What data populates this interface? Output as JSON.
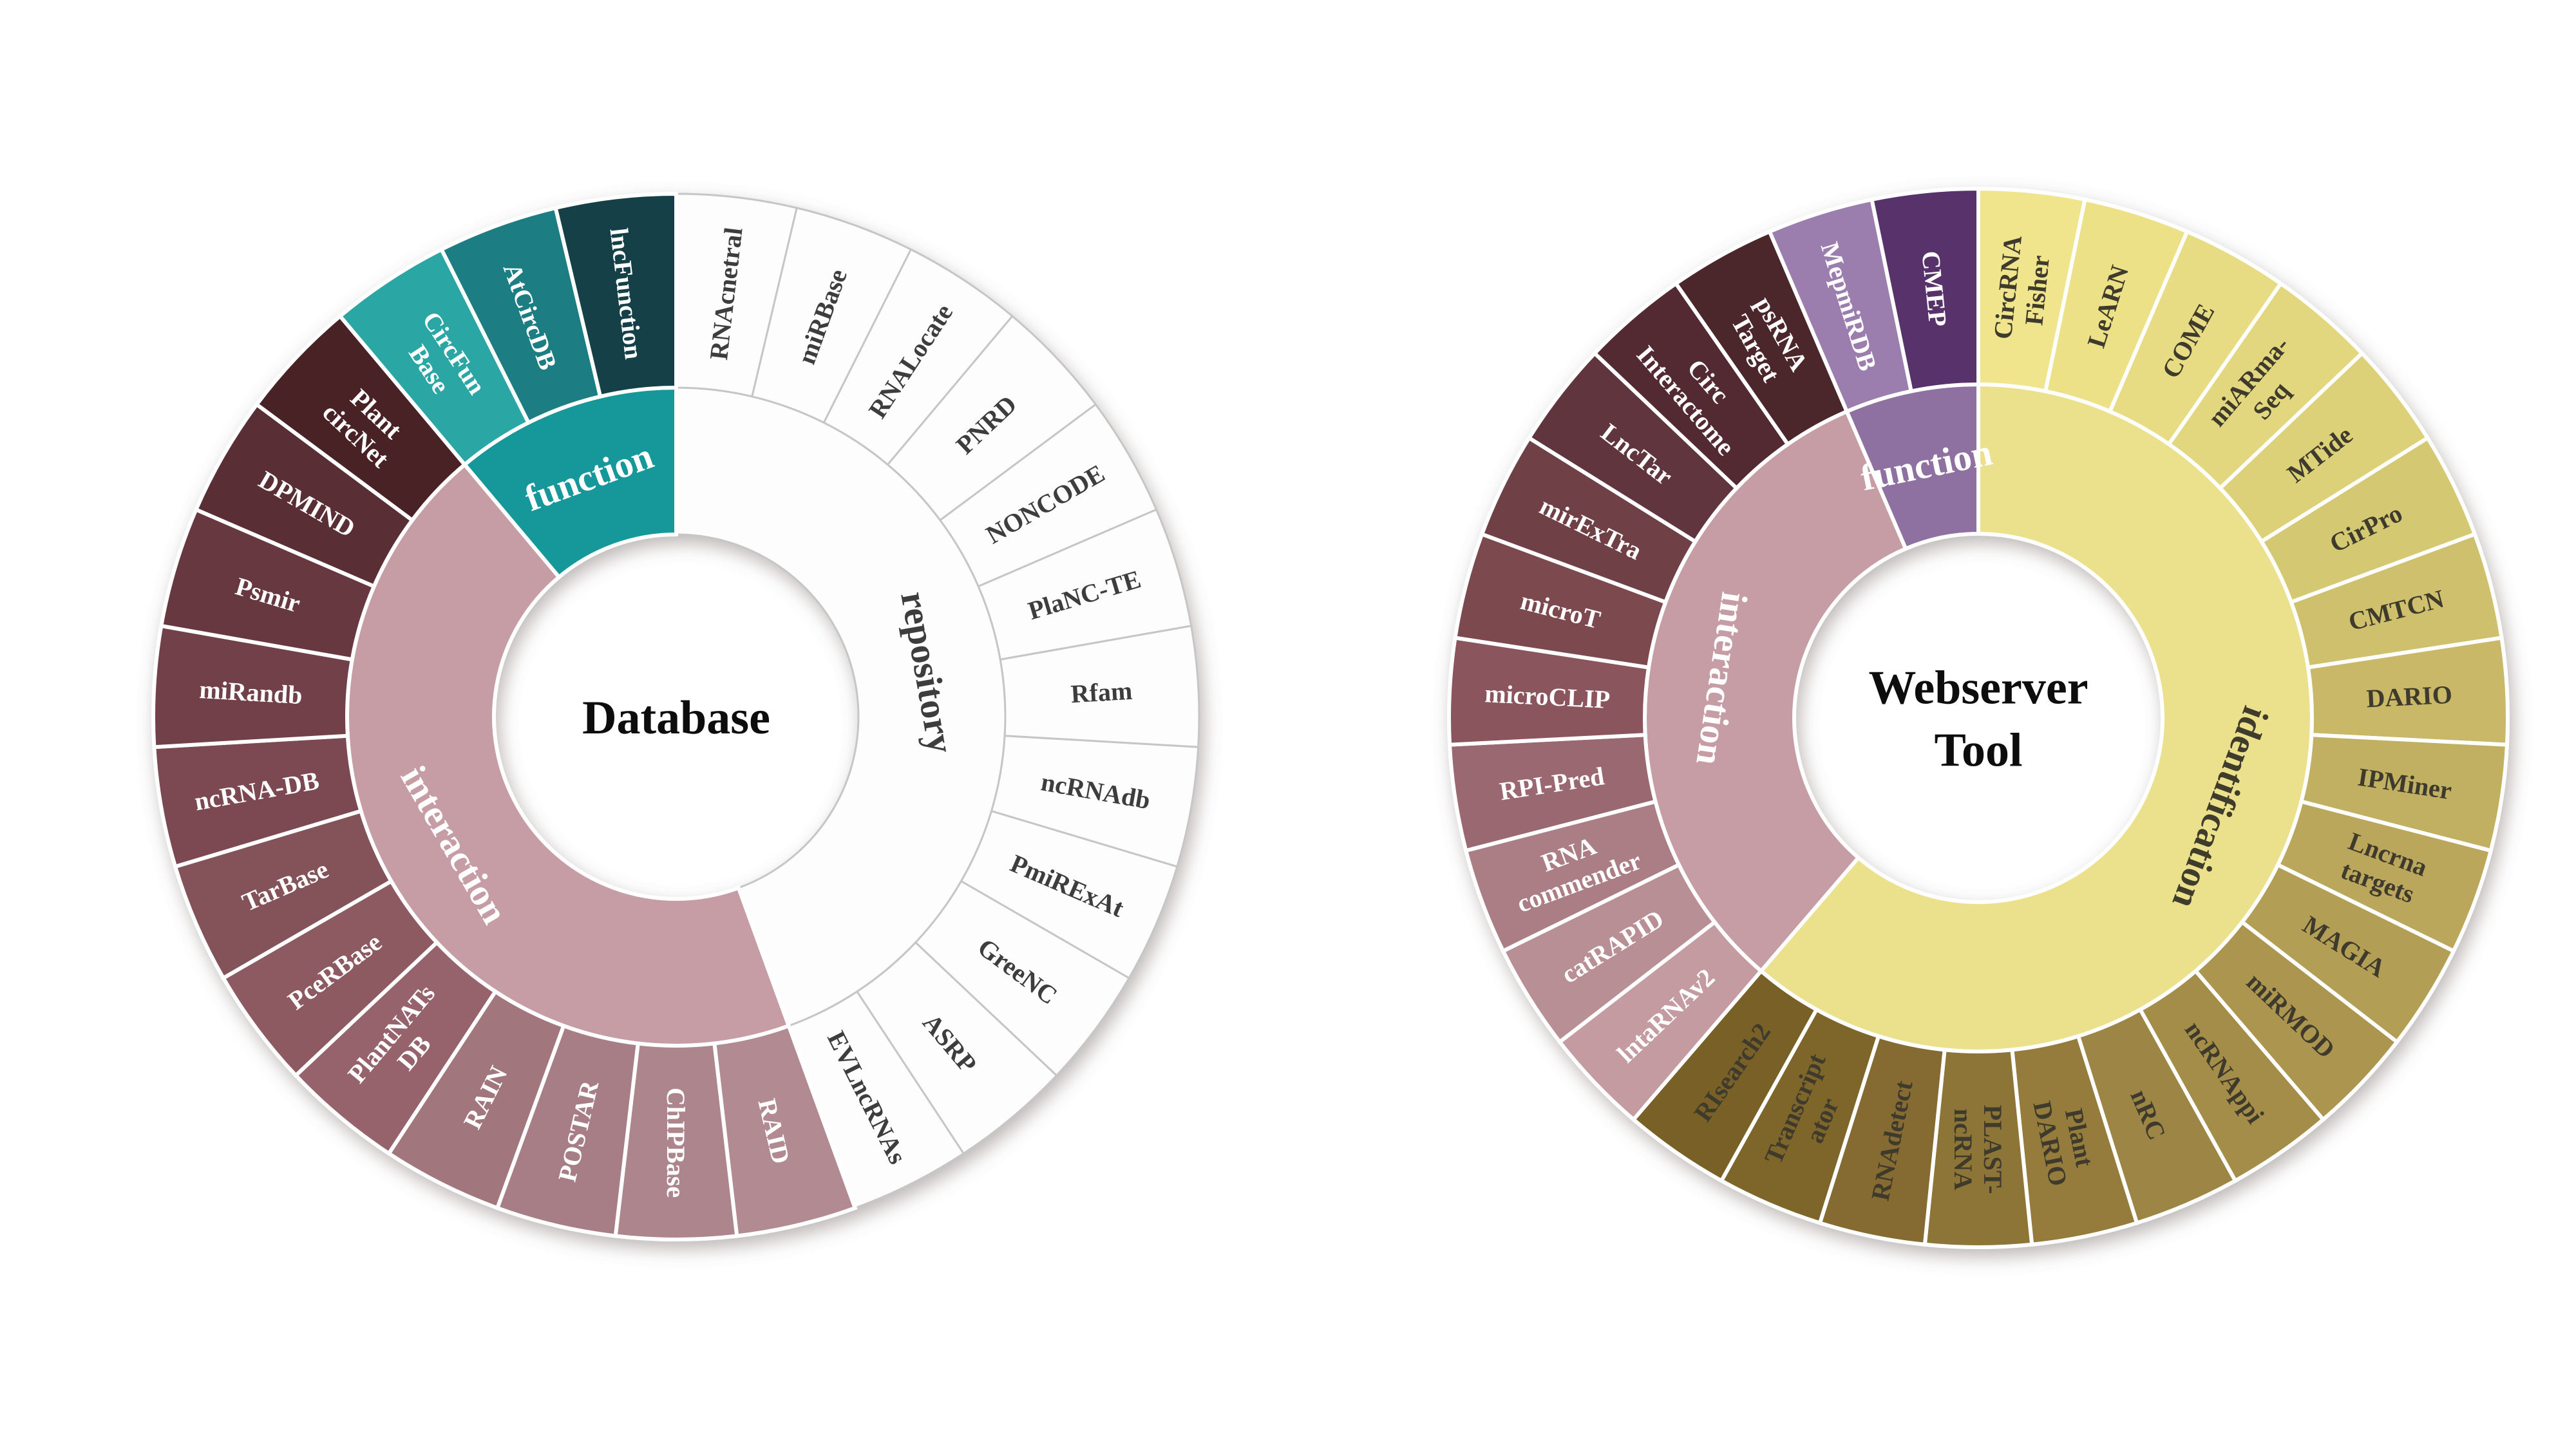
{
  "figure": {
    "description": "Two sunburst (doughnut) charts of plant non-coding RNA bioinformatics resources",
    "background_color": "#ffffff"
  },
  "chart_data": [
    {
      "type": "sunburst",
      "title": "Database",
      "center_label": {
        "lines": [
          "Database"
        ],
        "color": "#0d0d0d"
      },
      "rings": [
        "category",
        "database"
      ],
      "legend_position": "none",
      "grid": false,
      "categories": [
        {
          "name": "repository",
          "color": "#fdfdfd",
          "border_color": "#c6c6c6",
          "label_color": "#3d3d3d",
          "text_color": "#3d3d3d",
          "segments": [
            {
              "label": "RNAcnetral",
              "color": "#fdfdfd"
            },
            {
              "label": "miRBase",
              "color": "#fdfdfd"
            },
            {
              "label": "RNALocate",
              "color": "#fdfdfd"
            },
            {
              "label": "PNRD",
              "color": "#fdfdfd"
            },
            {
              "label": "NONCODE",
              "color": "#fdfdfd"
            },
            {
              "label": "PlaNC-TE",
              "color": "#fdfdfd"
            },
            {
              "label": "Rfam",
              "color": "#fdfdfd"
            },
            {
              "label": "ncRNAdb",
              "color": "#fdfdfd"
            },
            {
              "label": "PmiRExAt",
              "color": "#fdfdfd"
            },
            {
              "label": "GreeNC",
              "color": "#fdfdfd"
            },
            {
              "label": "ASRP",
              "color": "#fdfdfd"
            },
            {
              "label": "EVLncRNAs",
              "color": "#fdfdfd"
            }
          ]
        },
        {
          "name": "interaction",
          "color": "#c69da4",
          "border_color": "#ffffff",
          "label_color": "#ffffff",
          "text_color": "#ffffff",
          "segments": [
            {
              "label": "RAID",
              "color": "#b28b92"
            },
            {
              "label": "ChIPBase",
              "color": "#ad858c"
            },
            {
              "label": "POSTAR",
              "color": "#a77e85"
            },
            {
              "label": "RAIN",
              "color": "#a1767d"
            },
            {
              "label": "PlantNATs DB",
              "lines": [
                "PlantNATs",
                "DB"
              ],
              "color": "#96646d"
            },
            {
              "label": "PceRBase",
              "color": "#8d5a62"
            },
            {
              "label": "TarBase",
              "color": "#84525a"
            },
            {
              "label": "ncRNA-DB",
              "color": "#7b4a52"
            },
            {
              "label": "miRandb",
              "color": "#714149"
            },
            {
              "label": "Psmir",
              "color": "#673941"
            },
            {
              "label": "DPMIND",
              "color": "#5a2e35"
            },
            {
              "label": "Plant circNet",
              "lines": [
                "Plant",
                "circNet"
              ],
              "color": "#4a2228"
            }
          ]
        },
        {
          "name": "function",
          "color": "#18979a",
          "border_color": "#ffffff",
          "label_color": "#ffffff",
          "text_color": "#ffffff",
          "segments": [
            {
              "label": "CircFun Base",
              "lines": [
                "CircFun",
                "Base"
              ],
              "color": "#2ba6a4"
            },
            {
              "label": "AtCircDB",
              "color": "#1f7e82"
            },
            {
              "label": "lncFunction",
              "color": "#123f47"
            }
          ]
        }
      ]
    },
    {
      "type": "sunburst",
      "title": "Webserver Tool",
      "center_label": {
        "lines": [
          "Webserver",
          "Tool"
        ],
        "color": "#0d0d0d"
      },
      "rings": [
        "category",
        "tool"
      ],
      "legend_position": "none",
      "grid": false,
      "categories": [
        {
          "name": "identification",
          "color": "#ebe08c",
          "border_color": "#ffffff",
          "label_color": "#403c2b",
          "text_color": "#3e3a2c",
          "segments": [
            {
              "label": "CircRNA Fisher",
              "lines": [
                "CircRNA",
                "Fisher"
              ],
              "color": "#f0e58d"
            },
            {
              "label": "LeARN",
              "color": "#ece187"
            },
            {
              "label": "COME",
              "color": "#e7dc83"
            },
            {
              "label": "miARma-Seq",
              "lines": [
                "miARma-",
                "Seq"
              ],
              "color": "#e2d67e"
            },
            {
              "label": "MTide",
              "color": "#dcd079"
            },
            {
              "label": "CirPro",
              "color": "#d5c873"
            },
            {
              "label": "CMTCN",
              "color": "#cfc06d"
            },
            {
              "label": "DARIO",
              "color": "#c8b867"
            },
            {
              "label": "IPMiner",
              "color": "#c1b062"
            },
            {
              "label": "Lncrna targets",
              "lines": [
                "Lncrna",
                "targets"
              ],
              "color": "#baa75c"
            },
            {
              "label": "MAGIA",
              "color": "#b29e55"
            },
            {
              "label": "miRMOD",
              "color": "#ab954f"
            },
            {
              "label": "ncRNAppi",
              "color": "#a48d4a"
            },
            {
              "label": "nRC",
              "color": "#9d8544"
            },
            {
              "label": "Plant DARIO",
              "lines": [
                "Plant",
                "DARIO"
              ],
              "color": "#957c3e"
            },
            {
              "label": "PLAST-ncRNA",
              "lines": [
                "PLAST-",
                "ncRNA"
              ],
              "color": "#8d7438"
            },
            {
              "label": "RNAdetect",
              "color": "#856b31"
            },
            {
              "label": "Transcriptator",
              "lines": [
                "Transcript",
                "ator"
              ],
              "color": "#7e652c"
            },
            {
              "label": "RIsearch2",
              "color": "#786028"
            }
          ]
        },
        {
          "name": "interaction",
          "color": "#c69da4",
          "border_color": "#ffffff",
          "label_color": "#ffffff",
          "text_color": "#ffffff",
          "segments": [
            {
              "label": "lntaRNAv2",
              "color": "#c59ba2"
            },
            {
              "label": "catRAPID",
              "color": "#b98f96"
            },
            {
              "label": "RNA commender",
              "lines": [
                "RNA",
                "commender"
              ],
              "color": "#ab7d85"
            },
            {
              "label": "RPI-Pred",
              "color": "#9a6770"
            },
            {
              "label": "microCLIP",
              "color": "#8a555d"
            },
            {
              "label": "microT",
              "color": "#7b4950"
            },
            {
              "label": "mirExTra",
              "color": "#6f3f47"
            },
            {
              "label": "LncTar",
              "color": "#61343c"
            },
            {
              "label": "Circ Interactome",
              "lines": [
                "Circ",
                "Interactome"
              ],
              "color": "#532a31"
            },
            {
              "label": "psRNA Target",
              "lines": [
                "psRNA",
                "Target"
              ],
              "color": "#4c262b"
            }
          ]
        },
        {
          "name": "function",
          "color": "#8e70a1",
          "border_color": "#ffffff",
          "label_color": "#ffffff",
          "text_color": "#ffffff",
          "segments": [
            {
              "label": "MepmiRDB",
              "color": "#9c7eae"
            },
            {
              "label": "CMEP",
              "color": "#58306a"
            }
          ]
        }
      ]
    }
  ]
}
